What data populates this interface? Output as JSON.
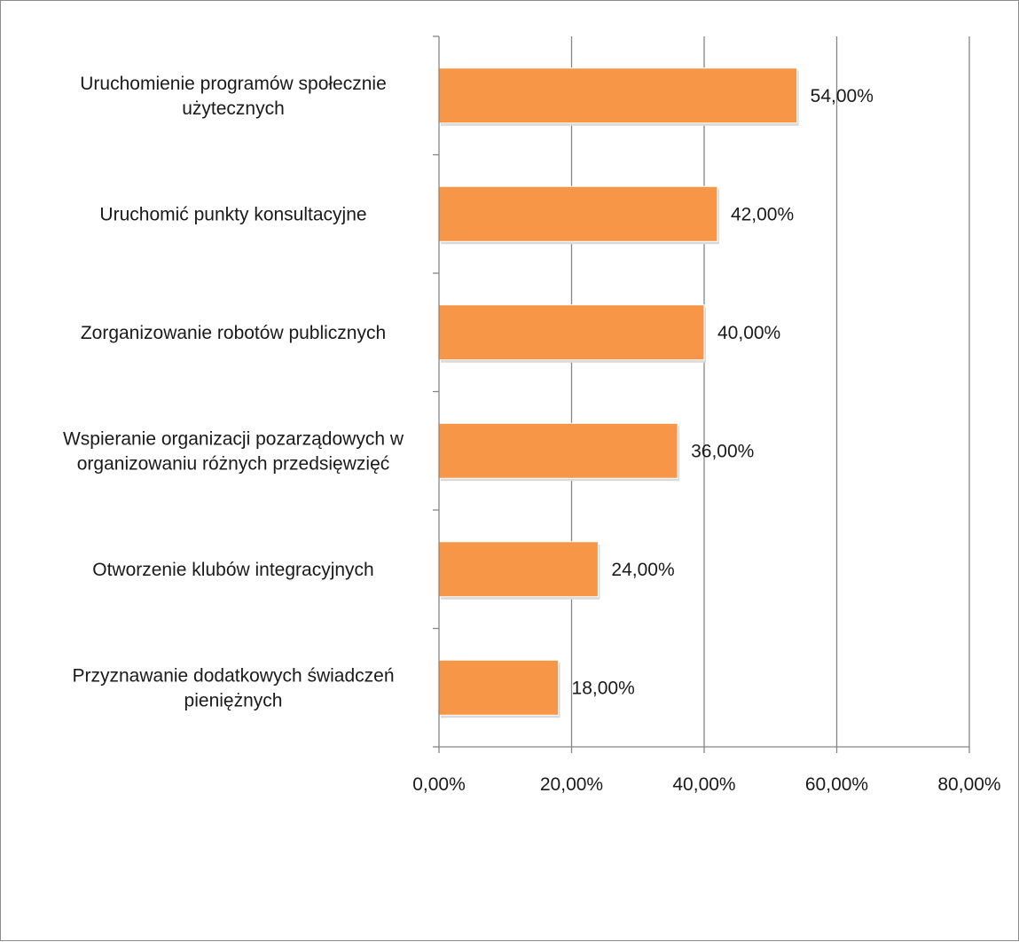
{
  "chart_data": {
    "type": "bar",
    "orientation": "horizontal",
    "categories": [
      [
        "Uruchomienie programów społecznie",
        "użytecznych"
      ],
      [
        "Uruchomić punkty konsultacyjne"
      ],
      [
        "Zorganizowanie robotów publicznych"
      ],
      [
        "Wspieranie organizacji pozarządowych w",
        "organizowaniu różnych przedsięwzięć"
      ],
      [
        "Otworzenie klubów integracyjnych"
      ],
      [
        "Przyznawanie dodatkowych świadczeń",
        "pieniężnych"
      ]
    ],
    "values": [
      54,
      42,
      40,
      36,
      24,
      18
    ],
    "value_labels": [
      "54,00%",
      "42,00%",
      "40,00%",
      "36,00%",
      "24,00%",
      "18,00%"
    ],
    "xlim": [
      0,
      80
    ],
    "x_ticks": [
      0,
      20,
      40,
      60,
      80
    ],
    "x_tick_labels": [
      "0,00%",
      "20,00%",
      "40,00%",
      "60,00%",
      "80,00%"
    ],
    "grid": true,
    "legend": "none",
    "title": "",
    "xlabel": "",
    "ylabel": "",
    "colors": {
      "bar": "#f79646",
      "grid": "#868686",
      "axis": "#868686",
      "text": "#1a1a1a"
    }
  }
}
